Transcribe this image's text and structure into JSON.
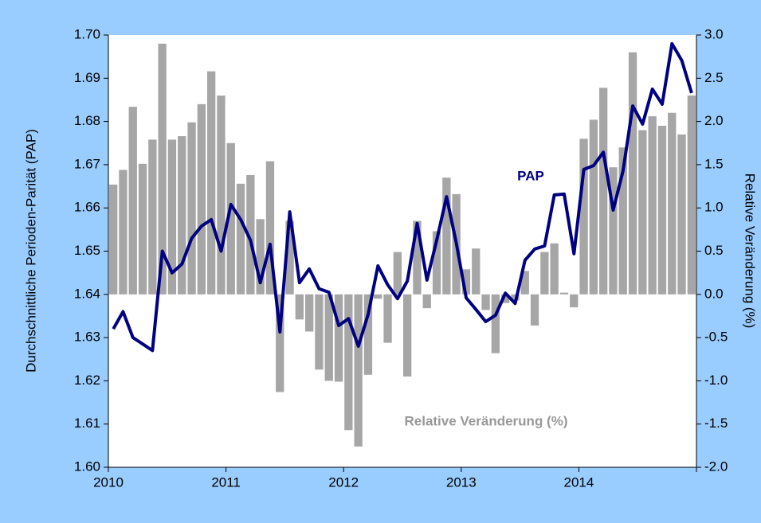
{
  "chart_data": {
    "type": "bar-line",
    "ylabel": "Durchschnittliche Perioden-Parität (PAP)",
    "y2label": "Relative Veränderung (%)",
    "categories": [
      "2010",
      null,
      null,
      null,
      null,
      null,
      null,
      null,
      null,
      null,
      null,
      null,
      "2011",
      null,
      null,
      null,
      null,
      null,
      null,
      null,
      null,
      null,
      null,
      null,
      "2012",
      null,
      null,
      null,
      null,
      null,
      null,
      null,
      null,
      null,
      null,
      null,
      "2013",
      null,
      null,
      null,
      null,
      null,
      null,
      null,
      null,
      null,
      null,
      null,
      "2014",
      null,
      null,
      null,
      null,
      null,
      null,
      null,
      null,
      null,
      null,
      null
    ],
    "series": [
      {
        "name": "Relative Veränderung (%)",
        "kind": "bar",
        "axis": "y2",
        "color": "#a6a6a6",
        "values": [
          1.27,
          1.44,
          2.17,
          1.51,
          1.79,
          2.9,
          1.79,
          1.83,
          1.99,
          2.2,
          2.58,
          2.3,
          1.75,
          1.28,
          1.38,
          0.87,
          1.54,
          -1.13,
          0.85,
          -0.29,
          -0.43,
          -0.87,
          -1.0,
          -1.01,
          -1.57,
          -1.76,
          -0.93,
          -0.05,
          -0.56,
          0.49,
          -0.95,
          0.85,
          -0.16,
          0.73,
          1.35,
          1.16,
          0.29,
          0.53,
          -0.18,
          -0.68,
          -0.1,
          -0.07,
          0.27,
          -0.36,
          0.49,
          0.59,
          0.02,
          -0.15,
          1.8,
          2.02,
          2.39,
          1.47,
          1.7,
          2.8,
          1.9,
          2.06,
          1.95,
          2.1,
          1.85,
          2.3
        ]
      },
      {
        "name": "PAP",
        "kind": "line",
        "axis": "y",
        "color": "#000080",
        "values": [
          1.632,
          1.636,
          1.63,
          1.6285,
          1.627,
          1.65,
          1.645,
          1.647,
          1.653,
          1.6558,
          1.6573,
          1.65,
          1.6608,
          1.6573,
          1.6525,
          1.6427,
          1.6516,
          1.6313,
          1.6591,
          1.6427,
          1.6459,
          1.6413,
          1.6405,
          1.6328,
          1.6344,
          1.628,
          1.6354,
          1.6466,
          1.6422,
          1.639,
          1.6431,
          1.6564,
          1.6433,
          1.6525,
          1.6626,
          1.6518,
          1.6392,
          1.6365,
          1.6337,
          1.6352,
          1.6403,
          1.6379,
          1.6479,
          1.6505,
          1.6512,
          1.663,
          1.6632,
          1.6494,
          1.6689,
          1.6698,
          1.6729,
          1.6595,
          1.6685,
          1.6836,
          1.6794,
          1.6875,
          1.684,
          1.698,
          1.6941,
          1.6866
        ]
      }
    ],
    "ylim": [
      1.6,
      1.7
    ],
    "yticks": [
      {
        "value": 1.6,
        "label": "1.60"
      },
      {
        "value": 1.61,
        "label": "1.61"
      },
      {
        "value": 1.62,
        "label": "1.62"
      },
      {
        "value": 1.63,
        "label": "1.63"
      },
      {
        "value": 1.64,
        "label": "1.64"
      },
      {
        "value": 1.65,
        "label": "1.65"
      },
      {
        "value": 1.66,
        "label": "1.66"
      },
      {
        "value": 1.67,
        "label": "1.67"
      },
      {
        "value": 1.68,
        "label": "1.68"
      },
      {
        "value": 1.69,
        "label": "1.69"
      },
      {
        "value": 1.7,
        "label": "1.70"
      }
    ],
    "y2lim": [
      -2.0,
      3.0
    ],
    "y2ticks": [
      {
        "value": -2,
        "label": "-2.0"
      },
      {
        "value": -1.5,
        "label": "-1.5"
      },
      {
        "value": -1,
        "label": "-1.0"
      },
      {
        "value": -0.5,
        "label": "-0.5"
      },
      {
        "value": 0,
        "label": "0.0"
      },
      {
        "value": 0.5,
        "label": "0.5"
      },
      {
        "value": 1,
        "label": "1.0"
      },
      {
        "value": 1.5,
        "label": "1.5"
      },
      {
        "value": 2,
        "label": "2.0"
      },
      {
        "value": 2.5,
        "label": "2.5"
      },
      {
        "value": 3,
        "label": "3.0"
      }
    ],
    "grid": false
  }
}
